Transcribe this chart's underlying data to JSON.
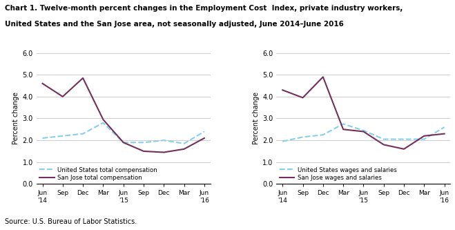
{
  "title_line1": "Chart 1. Twelve-month percent changes in the Employment Cost  Index, private industry workers,",
  "title_line2": "United States and the San Jose area, not seasonally adjusted, June 2014–June 2016",
  "ylabel": "Percent change",
  "source": "Source: U.S. Bureau of Labor Statistics.",
  "x_labels": [
    "Jun\n'14",
    "Sep",
    "Dec",
    "Mar",
    "Jun\n'15",
    "Sep",
    "Dec",
    "Mar",
    "Jun\n'16"
  ],
  "ylim": [
    0.0,
    6.0
  ],
  "yticks": [
    0.0,
    1.0,
    2.0,
    3.0,
    4.0,
    5.0,
    6.0
  ],
  "chart1": {
    "us_vals": [
      2.1,
      2.2,
      2.3,
      2.8,
      1.9,
      1.9,
      2.0,
      1.85,
      2.4
    ],
    "sj_vals": [
      4.6,
      4.0,
      4.85,
      2.95,
      1.9,
      1.5,
      1.45,
      1.6,
      2.1
    ],
    "legend1": "United States total compensation",
    "legend2": "San Jose total compensation"
  },
  "chart2": {
    "us_vals": [
      1.95,
      2.15,
      2.25,
      2.75,
      2.45,
      2.05,
      2.05,
      2.05,
      2.6
    ],
    "sj_vals": [
      4.3,
      3.95,
      4.9,
      2.5,
      2.4,
      1.8,
      1.6,
      2.2,
      2.3
    ],
    "legend1": "United States wages and salaries",
    "legend2": "San Jose wages and salaries"
  },
  "us_color": "#87CEEB",
  "sj_color": "#722F5B",
  "linewidth": 1.5,
  "background_color": "#ffffff",
  "grid_color": "#cccccc"
}
